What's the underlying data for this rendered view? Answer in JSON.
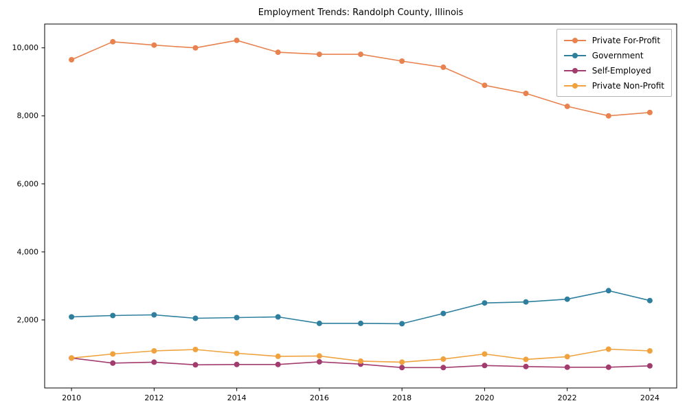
{
  "chart_data": {
    "type": "line",
    "title": "Employment Trends: Randolph County, Illinois",
    "x": [
      2010,
      2011,
      2012,
      2013,
      2014,
      2015,
      2016,
      2017,
      2018,
      2019,
      2020,
      2021,
      2022,
      2023,
      2024
    ],
    "series": [
      {
        "name": "Private For-Profit",
        "color": "#e8824f",
        "values": [
          9650,
          10180,
          10080,
          10000,
          10220,
          9870,
          9810,
          9810,
          9610,
          9430,
          8900,
          8660,
          8280,
          8000,
          8100
        ]
      },
      {
        "name": "Government",
        "color": "#2e7f9e",
        "values": [
          2090,
          2130,
          2150,
          2050,
          2070,
          2090,
          1900,
          1900,
          1890,
          2190,
          2500,
          2530,
          2610,
          2860,
          2570
        ]
      },
      {
        "name": "Self-Employed",
        "color": "#a23b6e",
        "values": [
          880,
          730,
          760,
          680,
          690,
          690,
          770,
          700,
          600,
          600,
          660,
          630,
          610,
          610,
          650
        ]
      },
      {
        "name": "Private Non-Profit",
        "color": "#efa23d",
        "values": [
          880,
          1000,
          1090,
          1130,
          1020,
          930,
          940,
          790,
          760,
          850,
          1000,
          840,
          920,
          1140,
          1090
        ]
      }
    ],
    "xticks": [
      2010,
      2012,
      2014,
      2016,
      2018,
      2020,
      2022,
      2024
    ],
    "yticks": [
      2000,
      4000,
      6000,
      8000,
      10000
    ],
    "ytick_labels": [
      "2,000",
      "4,000",
      "6,000",
      "8,000",
      "10,000"
    ],
    "xlim": [
      2009.35,
      2024.65
    ],
    "ylim": [
      0,
      10700
    ],
    "grid": false,
    "legend_position": "upper right",
    "marker": "circle",
    "line_width": 1.6,
    "marker_radius": 4
  }
}
